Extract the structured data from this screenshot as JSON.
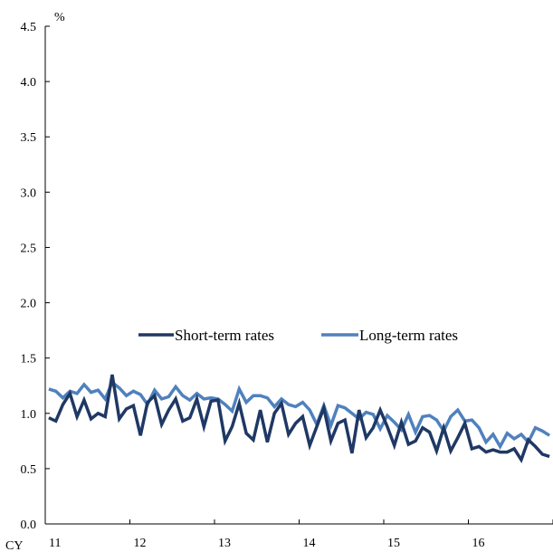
{
  "chart_data": {
    "type": "line",
    "unit_label": "%",
    "x_prefix_label": "CY",
    "ylim": [
      0.0,
      4.5
    ],
    "yticks": [
      "0.0",
      "0.5",
      "1.0",
      "1.5",
      "2.0",
      "2.5",
      "3.0",
      "3.5",
      "4.0",
      "4.5"
    ],
    "xticks": [
      "11",
      "12",
      "13",
      "14",
      "15",
      "16"
    ],
    "x_note": "monthly observations, Jan CY11 to Dec CY16",
    "grid": false,
    "legend_position": "middle",
    "colors": {
      "short": "#1f3864",
      "long": "#4f81bd"
    },
    "series": [
      {
        "name": "Short-term rates",
        "values": [
          0.96,
          0.93,
          1.08,
          1.18,
          0.97,
          1.12,
          0.95,
          1.0,
          0.97,
          1.35,
          0.95,
          1.04,
          1.07,
          0.8,
          1.1,
          1.16,
          0.9,
          1.03,
          1.13,
          0.93,
          0.96,
          1.13,
          0.88,
          1.11,
          1.12,
          0.75,
          0.88,
          1.09,
          0.82,
          0.76,
          1.03,
          0.74,
          1.0,
          1.09,
          0.81,
          0.91,
          0.97,
          0.71,
          0.88,
          1.05,
          0.75,
          0.91,
          0.94,
          0.64,
          1.03,
          0.78,
          0.87,
          1.03,
          0.88,
          0.71,
          0.92,
          0.72,
          0.75,
          0.87,
          0.83,
          0.66,
          0.87,
          0.66,
          0.78,
          0.91,
          0.68,
          0.7,
          0.65,
          0.67,
          0.65,
          0.65,
          0.68,
          0.58,
          0.76,
          0.7,
          0.63,
          0.61
        ]
      },
      {
        "name": "Long-term rates",
        "values": [
          1.22,
          1.2,
          1.14,
          1.2,
          1.18,
          1.26,
          1.19,
          1.21,
          1.13,
          1.28,
          1.23,
          1.16,
          1.2,
          1.17,
          1.08,
          1.21,
          1.13,
          1.15,
          1.24,
          1.16,
          1.12,
          1.18,
          1.13,
          1.14,
          1.13,
          1.08,
          1.02,
          1.22,
          1.1,
          1.16,
          1.16,
          1.14,
          1.06,
          1.13,
          1.08,
          1.06,
          1.1,
          1.03,
          0.9,
          1.07,
          0.89,
          1.07,
          1.05,
          1.0,
          0.95,
          1.01,
          0.99,
          0.86,
          0.98,
          0.92,
          0.85,
          0.99,
          0.83,
          0.97,
          0.98,
          0.94,
          0.84,
          0.97,
          1.03,
          0.93,
          0.94,
          0.87,
          0.74,
          0.81,
          0.7,
          0.82,
          0.77,
          0.81,
          0.74,
          0.87,
          0.84,
          0.8
        ]
      }
    ]
  }
}
